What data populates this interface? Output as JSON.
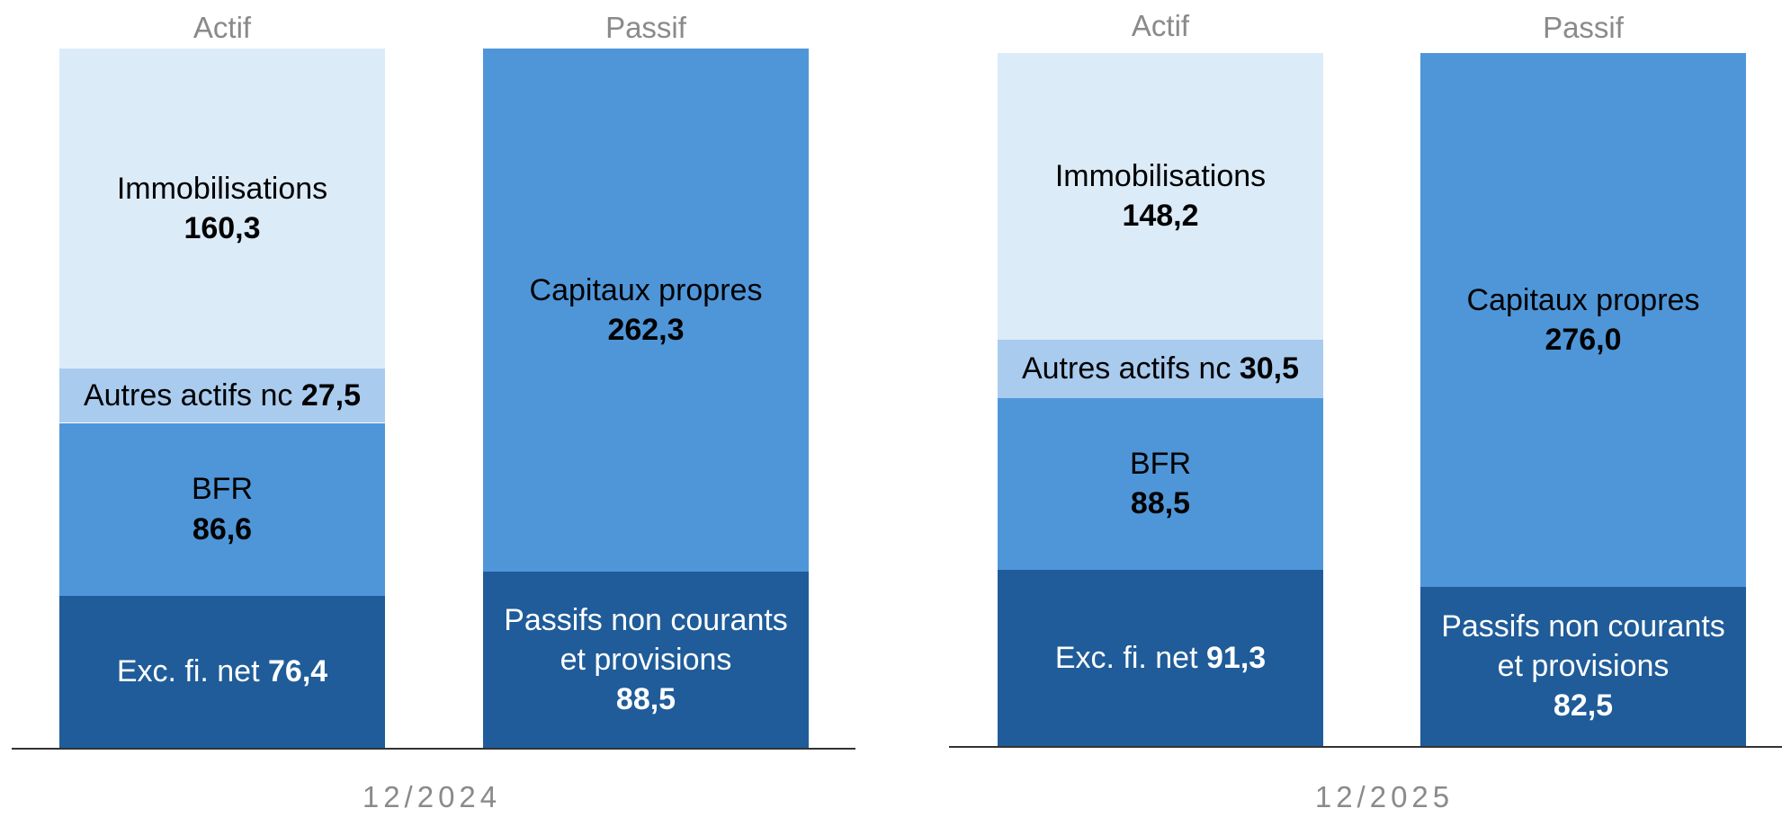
{
  "chart_data": [
    {
      "type": "bar",
      "stacked": true,
      "xlabel": "12/2024",
      "categories": [
        "Actif",
        "Passif"
      ],
      "series": [
        {
          "name": "Exc. fi. net",
          "color": "#1f5c99",
          "values": [
            76.4,
            null
          ],
          "value_labels": [
            "76,4",
            null
          ]
        },
        {
          "name": "Passifs non courants et provisions",
          "color": "#1f5c99",
          "values": [
            null,
            88.5
          ],
          "value_labels": [
            null,
            "88,5"
          ]
        },
        {
          "name": "BFR",
          "color": "#4f96d9",
          "values": [
            86.6,
            null
          ],
          "value_labels": [
            "86,6",
            null
          ]
        },
        {
          "name": "Capitaux propres",
          "color": "#4f96d9",
          "values": [
            null,
            262.3
          ],
          "value_labels": [
            null,
            "262,3"
          ]
        },
        {
          "name": "Autres actifs nc",
          "color": "#a9cbee",
          "values": [
            27.5,
            null
          ],
          "value_labels": [
            "27,5",
            null
          ]
        },
        {
          "name": "Immobilisations",
          "color": "#dcebf8",
          "values": [
            160.3,
            null
          ],
          "value_labels": [
            "160,3",
            null
          ]
        }
      ]
    },
    {
      "type": "bar",
      "stacked": true,
      "xlabel": "12/2025",
      "categories": [
        "Actif",
        "Passif"
      ],
      "series": [
        {
          "name": "Exc. fi. net",
          "color": "#1f5c99",
          "values": [
            91.3,
            null
          ],
          "value_labels": [
            "91,3",
            null
          ]
        },
        {
          "name": "Passifs non courants et provisions",
          "color": "#1f5c99",
          "values": [
            null,
            82.5
          ],
          "value_labels": [
            null,
            "82,5"
          ]
        },
        {
          "name": "BFR",
          "color": "#4f96d9",
          "values": [
            88.5,
            null
          ],
          "value_labels": [
            "88,5",
            null
          ]
        },
        {
          "name": "Capitaux propres",
          "color": "#4f96d9",
          "values": [
            null,
            276.0
          ],
          "value_labels": [
            null,
            "276,0"
          ]
        },
        {
          "name": "Autres actifs nc",
          "color": "#a9cbee",
          "values": [
            30.5,
            null
          ],
          "value_labels": [
            "30,5",
            null
          ]
        },
        {
          "name": "Immobilisations",
          "color": "#dcebf8",
          "values": [
            148.2,
            null
          ],
          "value_labels": [
            "148,2",
            null
          ]
        }
      ]
    }
  ]
}
